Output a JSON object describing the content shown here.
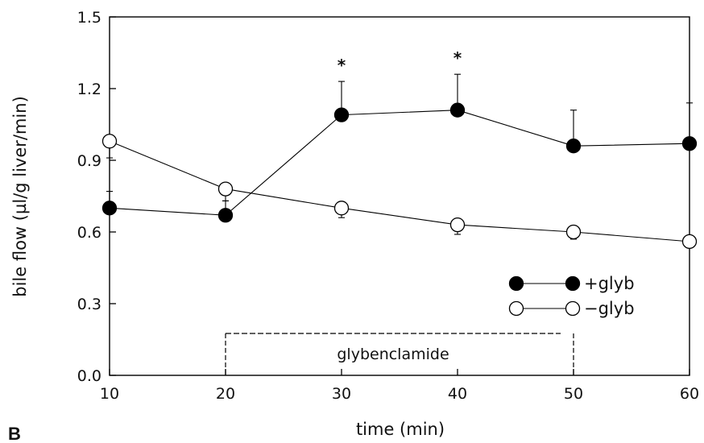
{
  "panel_label": "B",
  "chart_data": {
    "type": "line",
    "xlabel": "time (min)",
    "ylabel": "bile flow (µl/g liver/min)",
    "xlim": [
      10,
      60
    ],
    "ylim": [
      0.0,
      1.5
    ],
    "xticks": [
      10,
      20,
      30,
      40,
      50,
      60
    ],
    "yticks": [
      "0.0",
      "0.3",
      "0.6",
      "0.9",
      "1.2",
      "1.5"
    ],
    "grid": false,
    "legend_position": "lower-right",
    "series": [
      {
        "name": "+glyb",
        "marker": "filled-circle",
        "x": [
          10,
          20,
          30,
          40,
          50,
          60
        ],
        "y": [
          0.7,
          0.67,
          1.09,
          1.11,
          0.96,
          0.97
        ],
        "error_up": [
          0.07,
          0.06,
          0.14,
          0.15,
          0.15,
          0.17
        ],
        "color": "#000000"
      },
      {
        "name": "−glyb",
        "marker": "open-circle",
        "x": [
          10,
          20,
          30,
          40,
          50,
          60
        ],
        "y": [
          0.98,
          0.78,
          0.7,
          0.63,
          0.6,
          0.56
        ],
        "error_down": [
          0.07,
          0.05,
          0.04,
          0.04,
          0.03,
          0.02
        ],
        "color": "#000000"
      }
    ],
    "significance_markers": [
      {
        "x": 30,
        "label": "*"
      },
      {
        "x": 40,
        "label": "*"
      }
    ],
    "treatment_bar": {
      "label": "glybenclamide",
      "x_start": 20,
      "x_end": 50
    }
  }
}
